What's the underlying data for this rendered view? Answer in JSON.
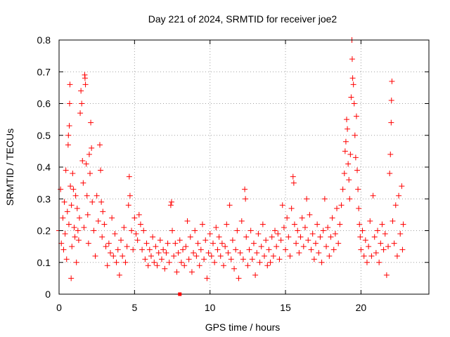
{
  "chart_data": {
    "type": "scatter",
    "title": "Day 221 of 2024, SRMTID for receiver joe2",
    "xlabel": "GPS time / hours",
    "ylabel": "SRMTID / TECUs",
    "xlim": [
      0,
      24.5
    ],
    "ylim": [
      0,
      0.8
    ],
    "x_ticks": [
      0,
      5,
      10,
      15,
      20
    ],
    "x_tick_labels": [
      "0",
      "5",
      "10",
      "15",
      "20"
    ],
    "y_ticks": [
      0,
      0.1,
      0.2,
      0.3,
      0.4,
      0.5,
      0.6,
      0.7,
      0.8
    ],
    "y_tick_labels": [
      "0",
      "0.1",
      "0.2",
      "0.3",
      "0.4",
      "0.5",
      "0.6",
      "0.7",
      "0.8"
    ],
    "grid": true,
    "marker": "+",
    "marker_color": "#ff0000",
    "series": [
      {
        "name": "SRMTID",
        "points": [
          [
            0.0,
            0.2
          ],
          [
            0.1,
            0.33
          ],
          [
            0.15,
            0.16
          ],
          [
            0.25,
            0.24
          ],
          [
            0.3,
            0.14
          ],
          [
            0.35,
            0.29
          ],
          [
            0.4,
            0.19
          ],
          [
            0.45,
            0.39
          ],
          [
            0.5,
            0.11
          ],
          [
            0.55,
            0.26
          ],
          [
            0.6,
            0.47
          ],
          [
            0.62,
            0.5
          ],
          [
            0.65,
            0.22
          ],
          [
            0.68,
            0.53
          ],
          [
            0.7,
            0.6
          ],
          [
            0.72,
            0.66
          ],
          [
            0.75,
            0.34
          ],
          [
            0.8,
            0.05
          ],
          [
            0.82,
            0.28
          ],
          [
            0.85,
            0.15
          ],
          [
            0.9,
            0.38
          ],
          [
            0.95,
            0.33
          ],
          [
            1.0,
            0.21
          ],
          [
            1.05,
            0.18
          ],
          [
            1.1,
            0.31
          ],
          [
            1.15,
            0.1
          ],
          [
            1.2,
            0.27
          ],
          [
            1.25,
            0.2
          ],
          [
            1.3,
            0.17
          ],
          [
            1.35,
            0.24
          ],
          [
            1.4,
            0.57
          ],
          [
            1.45,
            0.64
          ],
          [
            1.5,
            0.6
          ],
          [
            1.55,
            0.42
          ],
          [
            1.6,
            0.35
          ],
          [
            1.65,
            0.21
          ],
          [
            1.7,
            0.69
          ],
          [
            1.72,
            0.68
          ],
          [
            1.75,
            0.66
          ],
          [
            1.8,
            0.41
          ],
          [
            1.85,
            0.31
          ],
          [
            1.9,
            0.25
          ],
          [
            1.95,
            0.16
          ],
          [
            2.0,
            0.44
          ],
          [
            2.05,
            0.38
          ],
          [
            2.1,
            0.54
          ],
          [
            2.15,
            0.46
          ],
          [
            2.2,
            0.29
          ],
          [
            2.3,
            0.2
          ],
          [
            2.4,
            0.12
          ],
          [
            2.5,
            0.31
          ],
          [
            2.6,
            0.23
          ],
          [
            2.7,
            0.47
          ],
          [
            2.75,
            0.39
          ],
          [
            2.8,
            0.29
          ],
          [
            2.85,
            0.18
          ],
          [
            2.9,
            0.26
          ],
          [
            3.0,
            0.22
          ],
          [
            3.1,
            0.15
          ],
          [
            3.2,
            0.09
          ],
          [
            3.3,
            0.16
          ],
          [
            3.4,
            0.13
          ],
          [
            3.5,
            0.24
          ],
          [
            3.6,
            0.12
          ],
          [
            3.7,
            0.19
          ],
          [
            3.8,
            0.1
          ],
          [
            3.9,
            0.14
          ],
          [
            4.0,
            0.06
          ],
          [
            4.1,
            0.17
          ],
          [
            4.2,
            0.12
          ],
          [
            4.3,
            0.21
          ],
          [
            4.4,
            0.1
          ],
          [
            4.5,
            0.15
          ],
          [
            4.6,
            0.28
          ],
          [
            4.65,
            0.37
          ],
          [
            4.7,
            0.31
          ],
          [
            4.8,
            0.2
          ],
          [
            4.9,
            0.14
          ],
          [
            5.0,
            0.24
          ],
          [
            5.1,
            0.19
          ],
          [
            5.2,
            0.17
          ],
          [
            5.3,
            0.25
          ],
          [
            5.4,
            0.22
          ],
          [
            5.5,
            0.14
          ],
          [
            5.6,
            0.2
          ],
          [
            5.7,
            0.11
          ],
          [
            5.8,
            0.16
          ],
          [
            5.9,
            0.09
          ],
          [
            6.0,
            0.14
          ],
          [
            6.1,
            0.12
          ],
          [
            6.2,
            0.18
          ],
          [
            6.3,
            0.1
          ],
          [
            6.4,
            0.15
          ],
          [
            6.5,
            0.09
          ],
          [
            6.6,
            0.13
          ],
          [
            6.7,
            0.17
          ],
          [
            6.8,
            0.11
          ],
          [
            6.9,
            0.14
          ],
          [
            7.0,
            0.08
          ],
          [
            7.1,
            0.13
          ],
          [
            7.2,
            0.16
          ],
          [
            7.3,
            0.1
          ],
          [
            7.4,
            0.28
          ],
          [
            7.45,
            0.29
          ],
          [
            7.5,
            0.2
          ],
          [
            7.6,
            0.12
          ],
          [
            7.7,
            0.16
          ],
          [
            7.8,
            0.07
          ],
          [
            7.9,
            0.13
          ],
          [
            8.0,
            0.17
          ],
          [
            8.1,
            0.1
          ],
          [
            8.2,
            0.14
          ],
          [
            8.3,
            0.09
          ],
          [
            8.4,
            0.15
          ],
          [
            8.5,
            0.23
          ],
          [
            8.6,
            0.11
          ],
          [
            8.7,
            0.18
          ],
          [
            8.8,
            0.07
          ],
          [
            8.9,
            0.13
          ],
          [
            9.0,
            0.2
          ],
          [
            9.1,
            0.12
          ],
          [
            9.2,
            0.16
          ],
          [
            9.3,
            0.09
          ],
          [
            9.4,
            0.14
          ],
          [
            9.5,
            0.22
          ],
          [
            9.6,
            0.11
          ],
          [
            9.7,
            0.17
          ],
          [
            9.8,
            0.05
          ],
          [
            9.9,
            0.13
          ],
          [
            10.0,
            0.19
          ],
          [
            10.1,
            0.12
          ],
          [
            10.2,
            0.16
          ],
          [
            10.3,
            0.1
          ],
          [
            10.4,
            0.21
          ],
          [
            10.5,
            0.14
          ],
          [
            10.6,
            0.18
          ],
          [
            10.7,
            0.12
          ],
          [
            10.8,
            0.16
          ],
          [
            10.9,
            0.09
          ],
          [
            11.0,
            0.15
          ],
          [
            11.1,
            0.22
          ],
          [
            11.2,
            0.13
          ],
          [
            11.3,
            0.28
          ],
          [
            11.4,
            0.11
          ],
          [
            11.5,
            0.17
          ],
          [
            11.6,
            0.08
          ],
          [
            11.7,
            0.14
          ],
          [
            11.8,
            0.2
          ],
          [
            11.9,
            0.05
          ],
          [
            12.0,
            0.13
          ],
          [
            12.1,
            0.23
          ],
          [
            12.2,
            0.11
          ],
          [
            12.3,
            0.33
          ],
          [
            12.35,
            0.3
          ],
          [
            12.4,
            0.18
          ],
          [
            12.5,
            0.09
          ],
          [
            12.6,
            0.14
          ],
          [
            12.7,
            0.2
          ],
          [
            12.8,
            0.11
          ],
          [
            12.9,
            0.16
          ],
          [
            13.0,
            0.06
          ],
          [
            13.1,
            0.13
          ],
          [
            13.2,
            0.19
          ],
          [
            13.3,
            0.1
          ],
          [
            13.4,
            0.15
          ],
          [
            13.5,
            0.22
          ],
          [
            13.6,
            0.12
          ],
          [
            13.7,
            0.17
          ],
          [
            13.8,
            0.09
          ],
          [
            13.9,
            0.14
          ],
          [
            14.0,
            0.1
          ],
          [
            14.1,
            0.18
          ],
          [
            14.2,
            0.12
          ],
          [
            14.3,
            0.2
          ],
          [
            14.4,
            0.15
          ],
          [
            14.5,
            0.19
          ],
          [
            14.6,
            0.11
          ],
          [
            14.7,
            0.17
          ],
          [
            14.8,
            0.28
          ],
          [
            14.9,
            0.21
          ],
          [
            15.0,
            0.14
          ],
          [
            15.1,
            0.24
          ],
          [
            15.2,
            0.18
          ],
          [
            15.3,
            0.12
          ],
          [
            15.4,
            0.27
          ],
          [
            15.5,
            0.37
          ],
          [
            15.55,
            0.35
          ],
          [
            15.6,
            0.22
          ],
          [
            15.7,
            0.16
          ],
          [
            15.8,
            0.2
          ],
          [
            15.9,
            0.13
          ],
          [
            16.0,
            0.18
          ],
          [
            16.1,
            0.24
          ],
          [
            16.2,
            0.15
          ],
          [
            16.3,
            0.21
          ],
          [
            16.4,
            0.3
          ],
          [
            16.5,
            0.17
          ],
          [
            16.6,
            0.25
          ],
          [
            16.7,
            0.14
          ],
          [
            16.8,
            0.19
          ],
          [
            16.9,
            0.11
          ],
          [
            17.0,
            0.16
          ],
          [
            17.1,
            0.22
          ],
          [
            17.2,
            0.13
          ],
          [
            17.3,
            0.18
          ],
          [
            17.4,
            0.1
          ],
          [
            17.5,
            0.2
          ],
          [
            17.6,
            0.3
          ],
          [
            17.7,
            0.15
          ],
          [
            17.8,
            0.21
          ],
          [
            17.9,
            0.12
          ],
          [
            18.0,
            0.18
          ],
          [
            18.1,
            0.24
          ],
          [
            18.2,
            0.14
          ],
          [
            18.3,
            0.19
          ],
          [
            18.4,
            0.27
          ],
          [
            18.5,
            0.16
          ],
          [
            18.6,
            0.22
          ],
          [
            18.7,
            0.28
          ],
          [
            18.8,
            0.33
          ],
          [
            18.9,
            0.38
          ],
          [
            18.95,
            0.45
          ],
          [
            19.0,
            0.48
          ],
          [
            19.05,
            0.55
          ],
          [
            19.1,
            0.52
          ],
          [
            19.15,
            0.41
          ],
          [
            19.2,
            0.36
          ],
          [
            19.25,
            0.3
          ],
          [
            19.3,
            0.44
          ],
          [
            19.35,
            0.62
          ],
          [
            19.4,
            0.8
          ],
          [
            19.42,
            0.74
          ],
          [
            19.45,
            0.68
          ],
          [
            19.5,
            0.66
          ],
          [
            19.55,
            0.6
          ],
          [
            19.6,
            0.5
          ],
          [
            19.65,
            0.43
          ],
          [
            19.7,
            0.56
          ],
          [
            19.75,
            0.39
          ],
          [
            19.8,
            0.33
          ],
          [
            19.85,
            0.27
          ],
          [
            19.9,
            0.22
          ],
          [
            19.95,
            0.18
          ],
          [
            20.0,
            0.14
          ],
          [
            20.1,
            0.2
          ],
          [
            20.2,
            0.12
          ],
          [
            20.3,
            0.17
          ],
          [
            20.4,
            0.1
          ],
          [
            20.5,
            0.15
          ],
          [
            20.6,
            0.23
          ],
          [
            20.7,
            0.12
          ],
          [
            20.8,
            0.31
          ],
          [
            20.9,
            0.18
          ],
          [
            21.0,
            0.13
          ],
          [
            21.1,
            0.2
          ],
          [
            21.2,
            0.1
          ],
          [
            21.3,
            0.16
          ],
          [
            21.4,
            0.22
          ],
          [
            21.5,
            0.14
          ],
          [
            21.6,
            0.19
          ],
          [
            21.7,
            0.06
          ],
          [
            21.8,
            0.15
          ],
          [
            21.9,
            0.38
          ],
          [
            21.95,
            0.44
          ],
          [
            22.0,
            0.54
          ],
          [
            22.02,
            0.61
          ],
          [
            22.05,
            0.67
          ],
          [
            22.1,
            0.23
          ],
          [
            22.2,
            0.16
          ],
          [
            22.3,
            0.28
          ],
          [
            22.4,
            0.12
          ],
          [
            22.5,
            0.31
          ],
          [
            22.6,
            0.19
          ],
          [
            22.7,
            0.34
          ],
          [
            22.75,
            0.14
          ],
          [
            22.8,
            0.22
          ]
        ]
      }
    ],
    "annotations": [
      {
        "x": 8.0,
        "y": 0.0,
        "marker": "square",
        "color": "#ff0000"
      }
    ]
  }
}
